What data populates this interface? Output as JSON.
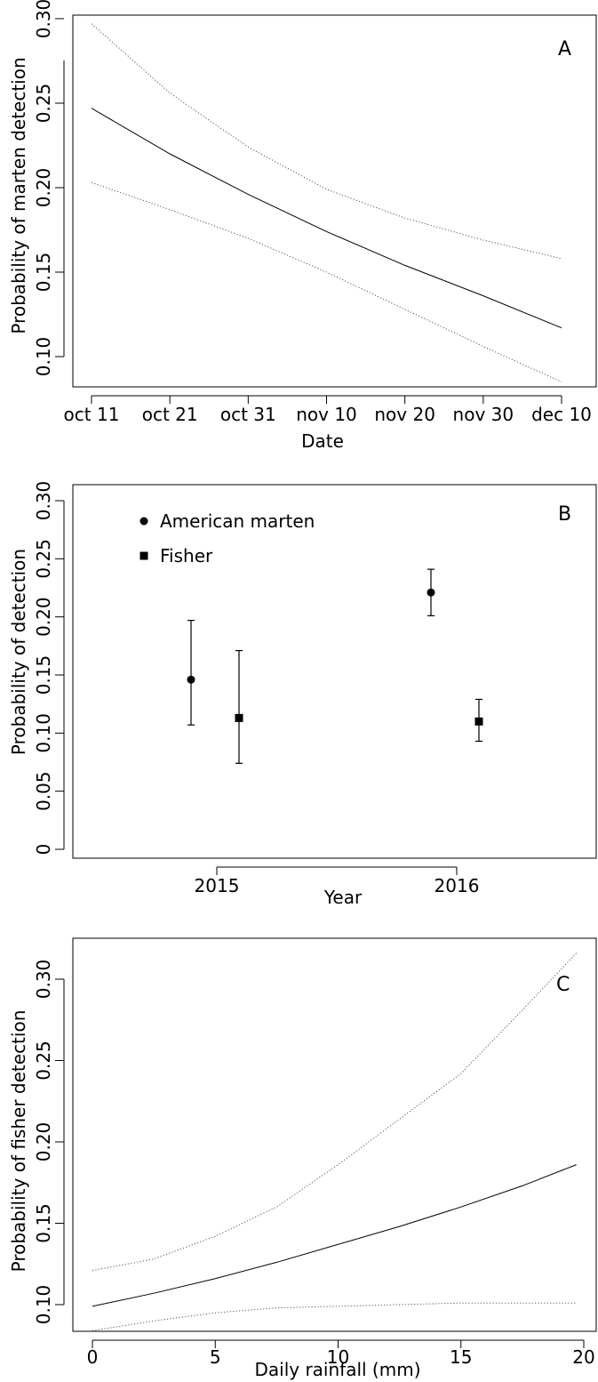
{
  "chart_data": [
    {
      "panel": "A",
      "type": "line",
      "xlabel": "Date",
      "ylabel": "Probability of marten detection",
      "x_tick_labels": [
        "oct 11",
        "oct 21",
        "oct 31",
        "nov 10",
        "nov 20",
        "nov 30",
        "dec 10"
      ],
      "x_tick_values": [
        "2016-10-11",
        "2016-10-21",
        "2016-10-31",
        "2016-11-10",
        "2016-11-20",
        "2016-11-30",
        "2016-12-10"
      ],
      "y_ticks": [
        "0.10",
        "0.15",
        "0.20",
        "0.25",
        "0.30"
      ],
      "xlim": [
        "2016-10-11",
        "2016-12-10"
      ],
      "ylim": [
        0.085,
        0.305
      ],
      "series": [
        {
          "role": "estimate",
          "x": [
            "2016-10-11",
            "2016-10-21",
            "2016-10-31",
            "2016-11-10",
            "2016-11-20",
            "2016-11-30",
            "2016-12-10"
          ],
          "y": [
            0.247,
            0.22,
            0.196,
            0.174,
            0.154,
            0.136,
            0.117
          ]
        },
        {
          "role": "upper_ci",
          "x": [
            "2016-10-11",
            "2016-10-21",
            "2016-10-31",
            "2016-11-10",
            "2016-11-20",
            "2016-11-30",
            "2016-12-10"
          ],
          "y": [
            0.297,
            0.256,
            0.224,
            0.199,
            0.182,
            0.169,
            0.158
          ]
        },
        {
          "role": "lower_ci",
          "x": [
            "2016-10-11",
            "2016-10-21",
            "2016-10-31",
            "2016-11-10",
            "2016-11-20",
            "2016-11-30",
            "2016-12-10"
          ],
          "y": [
            0.203,
            0.187,
            0.17,
            0.15,
            0.128,
            0.106,
            0.085
          ]
        }
      ],
      "grid": false
    },
    {
      "panel": "B",
      "type": "scatter",
      "xlabel": "Year",
      "ylabel": "Probability of detection",
      "categories": [
        "2015",
        "2016"
      ],
      "y_ticks": [
        "0",
        "0.05",
        "0.10",
        "0.15",
        "0.20",
        "0.25",
        "0.30"
      ],
      "ylim": [
        0,
        0.3
      ],
      "legend_position": "top-left",
      "series": [
        {
          "name": "American marten",
          "marker": "circle",
          "values": [
            0.146,
            0.221
          ],
          "lower": [
            0.107,
            0.201
          ],
          "upper": [
            0.197,
            0.241
          ]
        },
        {
          "name": "Fisher",
          "marker": "square",
          "values": [
            0.113,
            0.11
          ],
          "lower": [
            0.074,
            0.093
          ],
          "upper": [
            0.171,
            0.129
          ]
        }
      ],
      "grid": false
    },
    {
      "panel": "C",
      "type": "line",
      "xlabel": "Daily rainfall (mm)",
      "ylabel": "Probability of fisher detection",
      "x_ticks": [
        "0",
        "5",
        "10",
        "15",
        "20"
      ],
      "y_ticks": [
        "0.10",
        "0.15",
        "0.20",
        "0.25",
        "0.30"
      ],
      "xlim": [
        0,
        20
      ],
      "ylim": [
        0.085,
        0.315
      ],
      "series": [
        {
          "role": "estimate",
          "x": [
            0,
            2.5,
            5,
            7.5,
            10,
            12.5,
            15,
            17.5,
            19.7
          ],
          "y": [
            0.099,
            0.107,
            0.116,
            0.126,
            0.137,
            0.148,
            0.16,
            0.173,
            0.186
          ]
        },
        {
          "role": "upper_ci",
          "x": [
            0,
            2.5,
            5,
            7.5,
            10,
            12.5,
            15,
            17.5,
            19.7
          ],
          "y": [
            0.121,
            0.128,
            0.142,
            0.16,
            0.186,
            0.214,
            0.242,
            0.281,
            0.316
          ]
        },
        {
          "role": "lower_ci",
          "x": [
            0,
            2.5,
            5,
            7.5,
            10,
            12.5,
            15,
            17.5,
            19.7
          ],
          "y": [
            0.084,
            0.09,
            0.095,
            0.098,
            0.099,
            0.1,
            0.101,
            0.101,
            0.101
          ]
        }
      ],
      "grid": false
    }
  ]
}
